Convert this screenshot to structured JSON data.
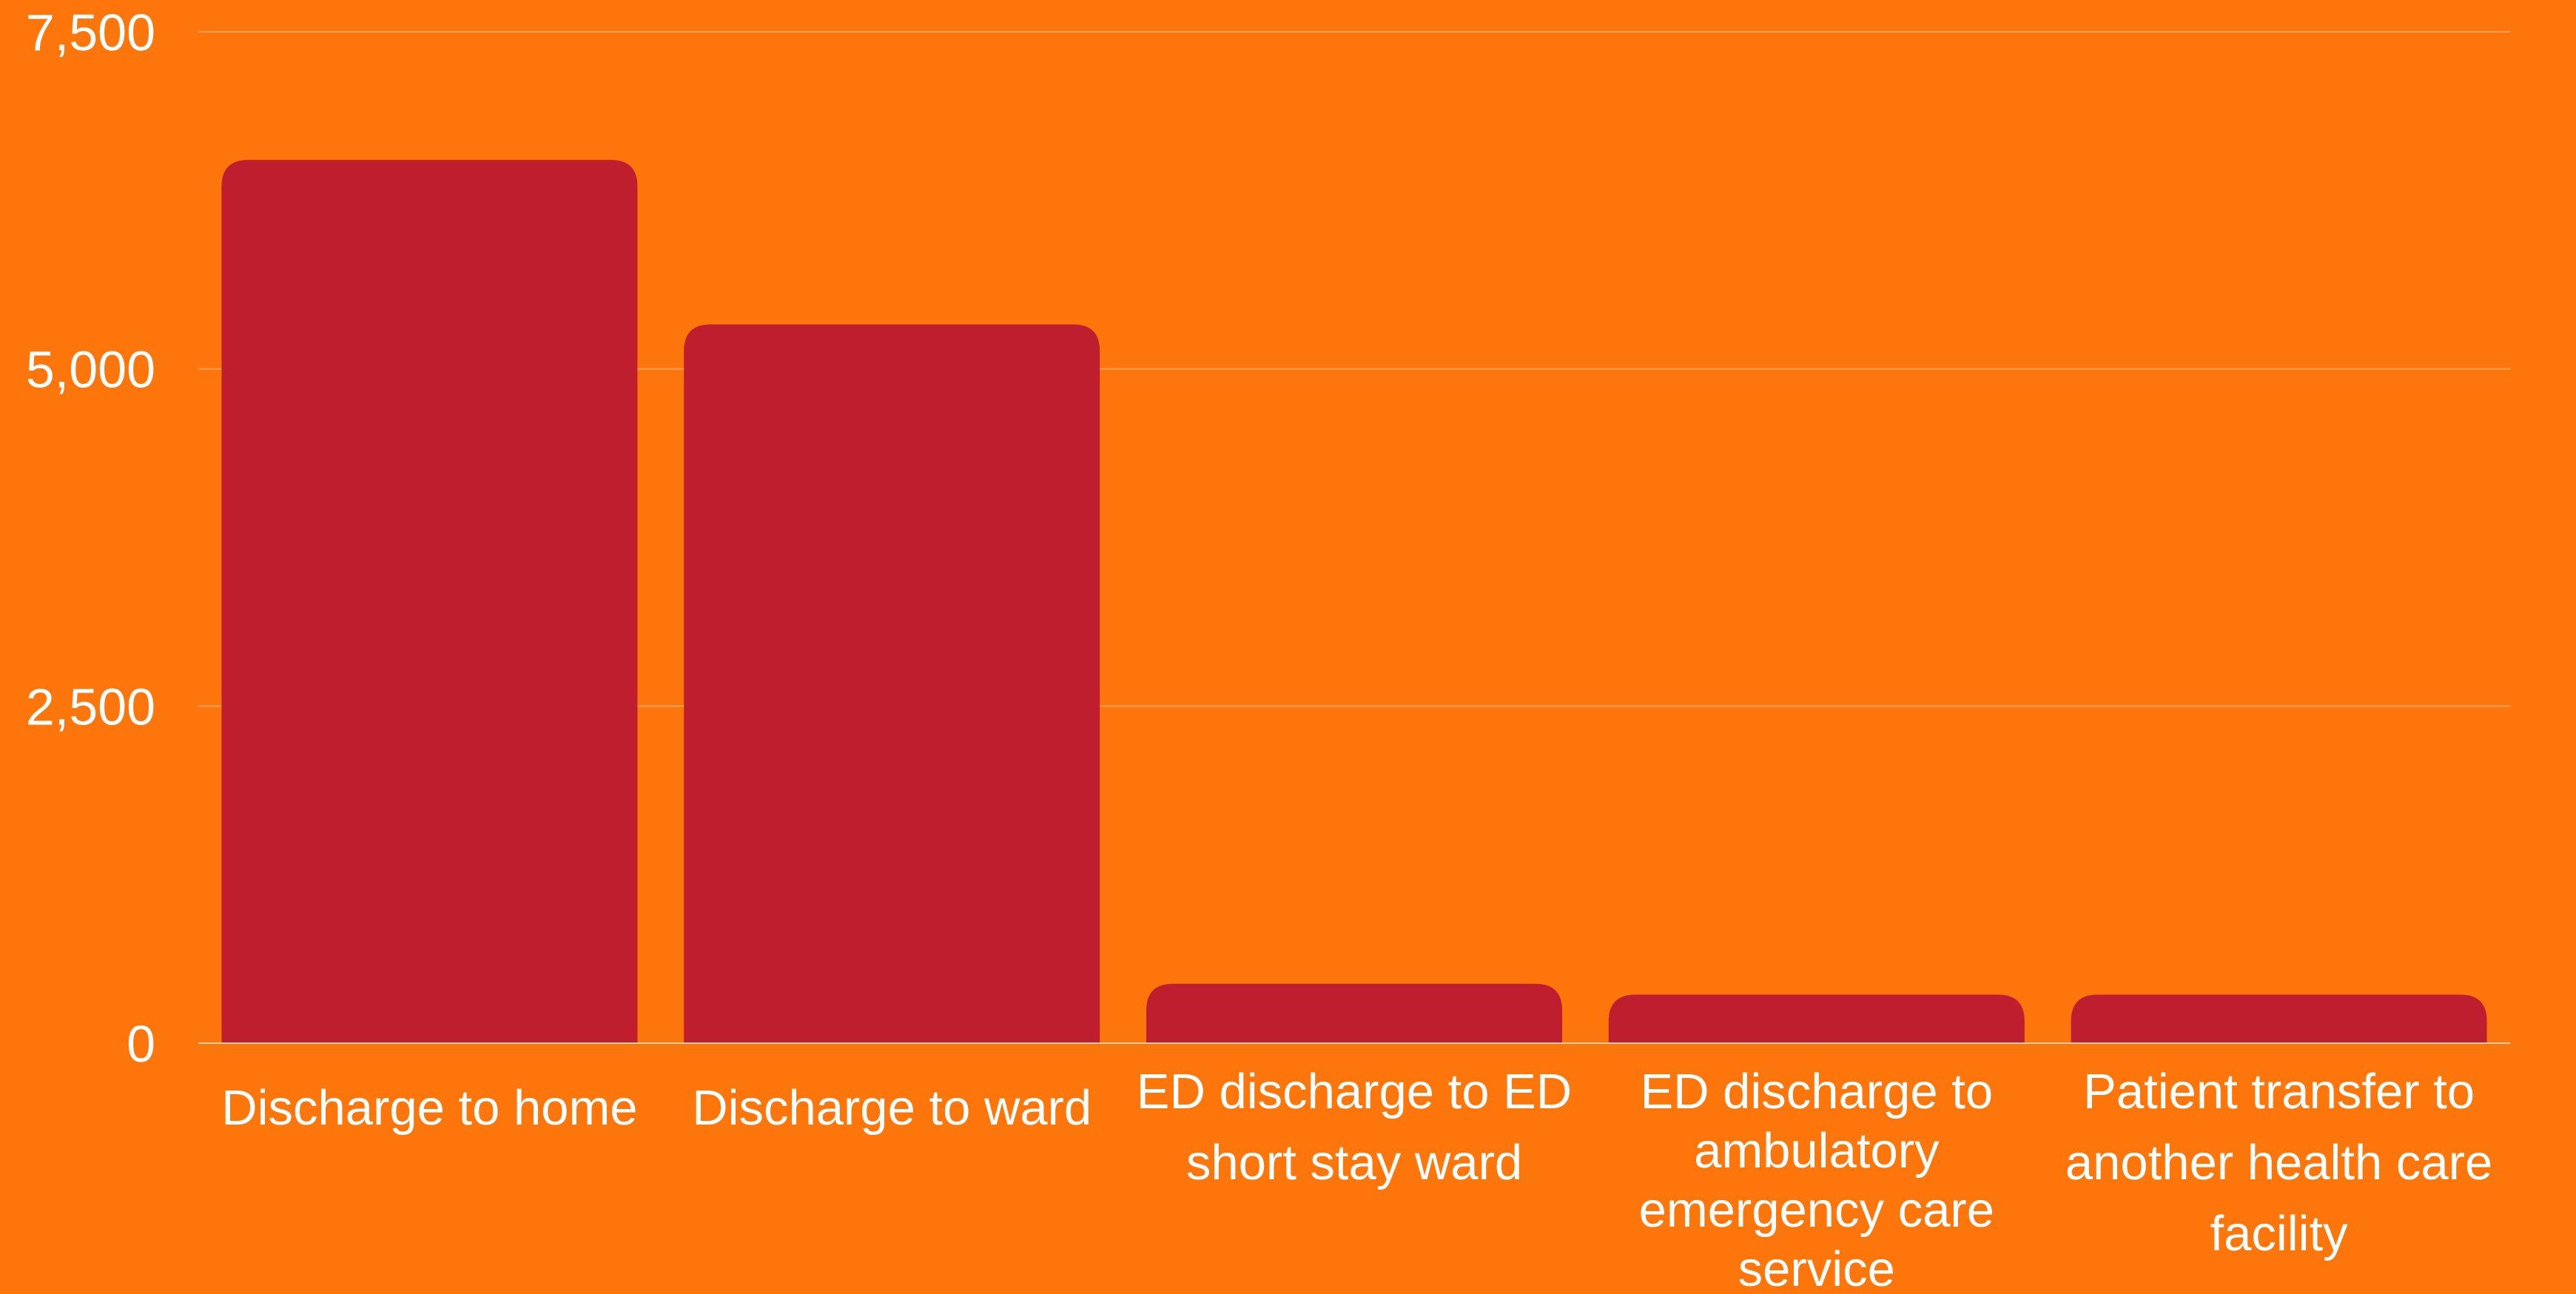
{
  "chart_data": {
    "type": "bar",
    "title": "",
    "xlabel": "",
    "ylabel": "",
    "categories": [
      [
        "Discharge to home"
      ],
      [
        "Discharge to ward"
      ],
      [
        "ED discharge to ED",
        "short stay ward"
      ],
      [
        "ED discharge to",
        "ambulatory",
        "emergency care",
        "service"
      ],
      [
        "Patient transfer to",
        "another health care",
        "facility"
      ]
    ],
    "values": [
      6550,
      5330,
      440,
      360,
      360
    ],
    "ylim": [
      0,
      7500
    ],
    "yticks": [
      0,
      2500,
      5000,
      7500
    ],
    "ytick_labels": [
      "0",
      "2,500",
      "5,000",
      "7,500"
    ],
    "grid": true,
    "legend": "none"
  },
  "colors": {
    "background": "#FC760B",
    "bar": "#BE1E2D",
    "text": "#FFFFFF",
    "gridline": "#FDA05A",
    "baseline": "#FFD2B0"
  }
}
